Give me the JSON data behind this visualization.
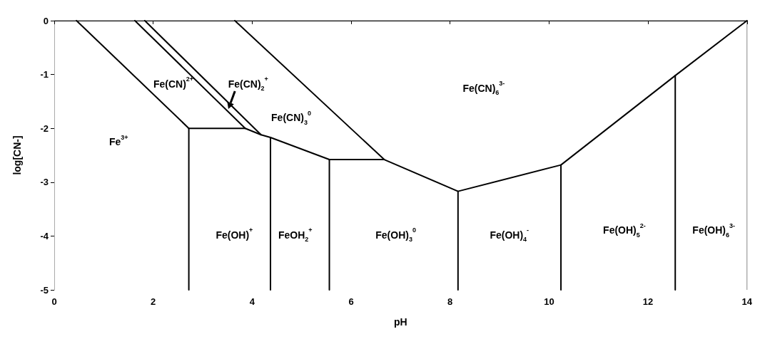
{
  "chart_data": {
    "type": "line",
    "xlabel": "pH",
    "ylabel": "log[CN-]",
    "xlim": [
      0,
      14
    ],
    "ylim": [
      -5,
      0
    ],
    "xticks": [
      0,
      2,
      4,
      6,
      8,
      10,
      12,
      14
    ],
    "yticks": [
      -5,
      -4,
      -3,
      -2,
      -1,
      0
    ],
    "marker": "none",
    "line_style": "solid",
    "series": [
      {
        "color": "#000000",
        "x": [
          0.45,
          2.72
        ],
        "values": [
          0,
          -2.0
        ]
      },
      {
        "color": "#000000",
        "x": [
          1.63,
          3.86
        ],
        "values": [
          0,
          -2.0
        ]
      },
      {
        "color": "#000000",
        "x": [
          1.83,
          4.18
        ],
        "values": [
          0,
          -2.12
        ]
      },
      {
        "color": "#000000",
        "x": [
          3.65,
          6.67
        ],
        "values": [
          0,
          -2.58
        ]
      },
      {
        "color": "#000000",
        "x": [
          2.72,
          3.86,
          4.18,
          4.37,
          5.56,
          6.67,
          8.16,
          10.24,
          12.55,
          14
        ],
        "values": [
          -2.0,
          -2.0,
          -2.12,
          -2.17,
          -2.58,
          -2.58,
          -3.17,
          -2.68,
          -1.02,
          0
        ]
      },
      {
        "color": "#000000",
        "x": [
          2.72,
          2.72
        ],
        "values": [
          -2.0,
          -5
        ]
      },
      {
        "color": "#000000",
        "x": [
          4.37,
          4.37
        ],
        "values": [
          -2.17,
          -5
        ]
      },
      {
        "color": "#000000",
        "x": [
          5.56,
          5.56
        ],
        "values": [
          -2.58,
          -5
        ]
      },
      {
        "color": "#000000",
        "x": [
          8.16,
          8.16
        ],
        "values": [
          -3.17,
          -5
        ]
      },
      {
        "color": "#000000",
        "x": [
          10.24,
          10.24
        ],
        "values": [
          -2.68,
          -5
        ]
      },
      {
        "color": "#000000",
        "x": [
          12.55,
          12.55
        ],
        "values": [
          -1.02,
          -5
        ]
      }
    ],
    "annotations": [
      "Fe(CN)$^{2+}$",
      "Fe(CN)$_{2}$$^{+}$",
      "Fe(CN)$_{3}$$^{0}$",
      "Fe(CN)$_{6}$$^{3-}$",
      "Fe$^{3+}$",
      "Fe(OH)$^{+}$",
      "FeOH$_{2}$$^{+}$",
      "Fe(OH)$_{3}$$^{0}$",
      "Fe(OH)$_{4}$$^{-}$",
      "Fe(OH)$_{5}$$^{2-}$",
      "Fe(OH)$_{6}$$^{3-}$"
    ]
  }
}
